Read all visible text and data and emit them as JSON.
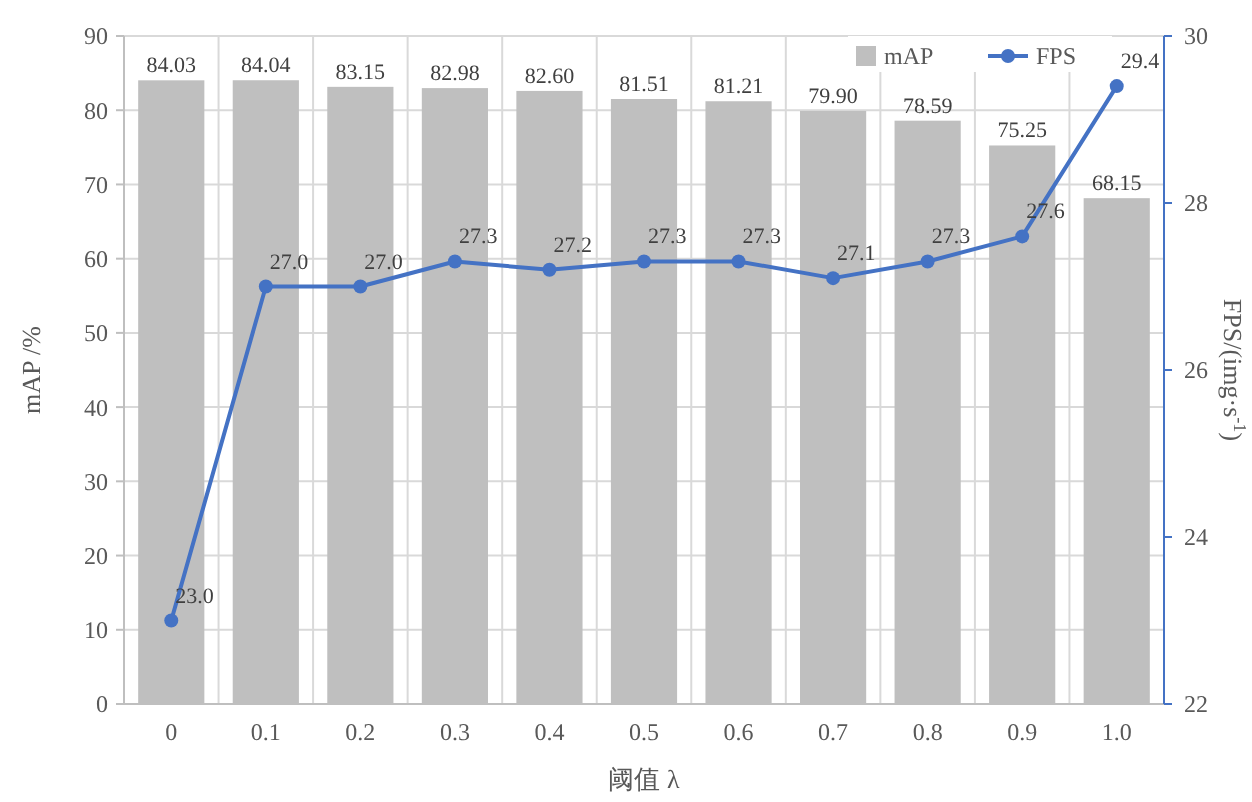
{
  "chart_data": {
    "type": "bar",
    "xlabel": "阈值 λ",
    "ylabel": "mAP /%",
    "y2label": "FPS/(img·s$^{-1}$)",
    "categories": [
      "0",
      "0.1",
      "0.2",
      "0.3",
      "0.4",
      "0.5",
      "0.6",
      "0.7",
      "0.8",
      "0.9",
      "1.0"
    ],
    "series": [
      {
        "name": "mAP",
        "color": "#bfbfbf",
        "values": [
          84.03,
          84.04,
          83.15,
          82.98,
          82.6,
          81.51,
          81.21,
          79.9,
          78.59,
          75.25,
          68.15
        ],
        "value_labels": [
          "84.03",
          "84.04",
          "83.15",
          "82.98",
          "82.60",
          "81.51",
          "81.21",
          "79.90",
          "78.59",
          "75.25",
          "68.15"
        ]
      },
      {
        "name": "FPS",
        "type": "line",
        "axis": "y2",
        "color": "#4472c4",
        "marker": "circle",
        "values": [
          23.0,
          27.0,
          27.0,
          27.3,
          27.2,
          27.3,
          27.3,
          27.1,
          27.3,
          27.6,
          29.4
        ],
        "value_labels": [
          "23.0",
          "27.0",
          "27.0",
          "27.3",
          "27.2",
          "27.3",
          "27.3",
          "27.1",
          "27.3",
          "27.6",
          "29.4"
        ]
      }
    ],
    "ylim": [
      0,
      90
    ],
    "yticks": [
      0,
      10,
      20,
      30,
      40,
      50,
      60,
      70,
      80,
      90
    ],
    "y2lim": [
      22,
      30
    ],
    "y2ticks": [
      22,
      24,
      26,
      28,
      30
    ],
    "grid": true,
    "legend": "top right"
  }
}
